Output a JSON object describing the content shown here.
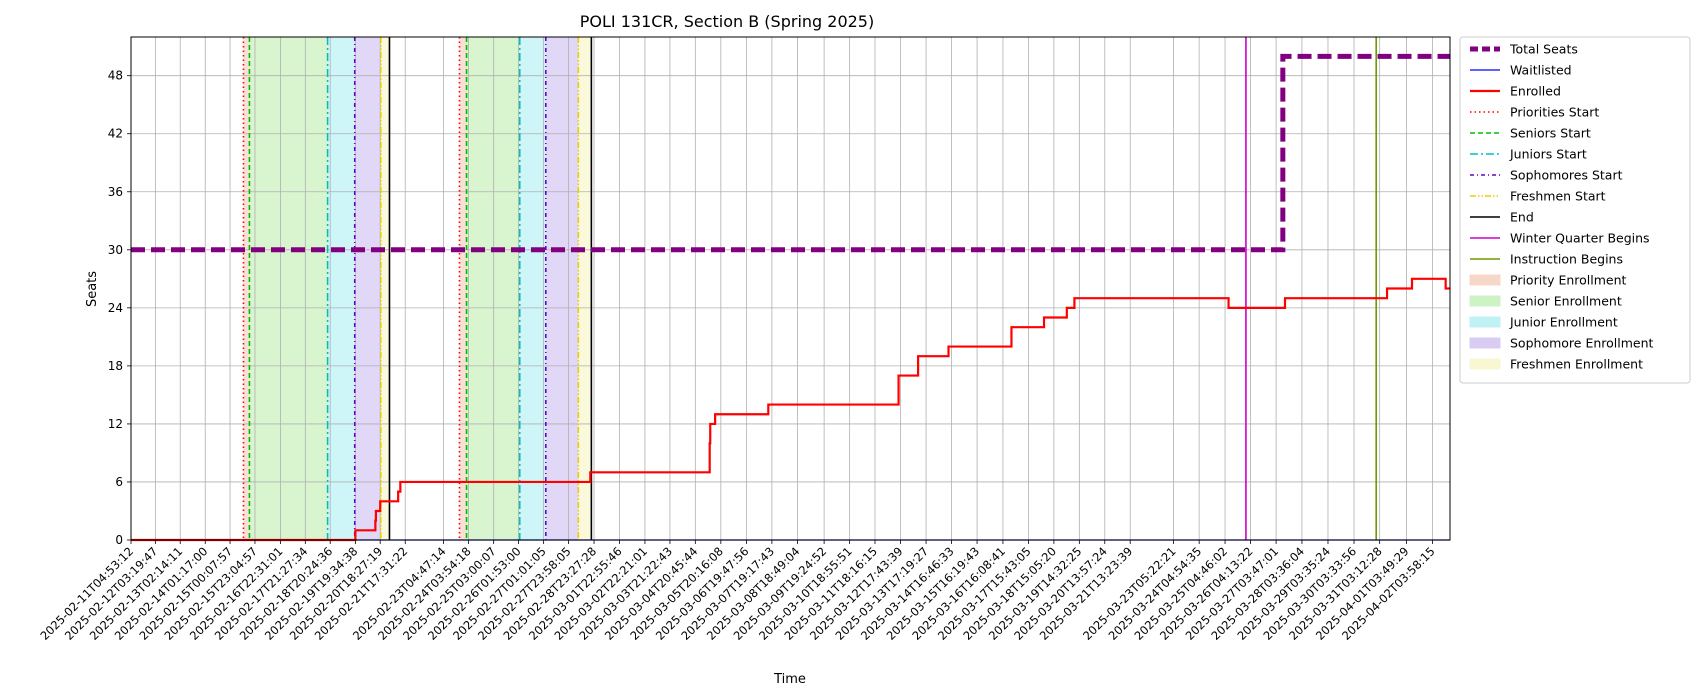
{
  "chart_data": {
    "type": "line",
    "title": "POLI 131CR, Section B (Spring 2025)",
    "xlabel": "Time",
    "ylabel": "Seats",
    "x_range": [
      "2025-02-11T04:53:12",
      "2025-04-02T20:00:00"
    ],
    "ylim": [
      0,
      52
    ],
    "y_ticks": [
      0,
      6,
      12,
      18,
      24,
      30,
      36,
      42,
      48
    ],
    "grid": true,
    "legend_position": "outside-right",
    "x_ticks": [
      "2025-02-11T04:53:12",
      "2025-02-12T03:19:47",
      "2025-02-13T02:14:11",
      "2025-02-14T01:17:00",
      "2025-02-15T00:07:57",
      "2025-02-15T23:04:57",
      "2025-02-16T22:31:01",
      "2025-02-17T21:27:34",
      "2025-02-18T20:24:36",
      "2025-02-19T19:34:38",
      "2025-02-20T18:27:19",
      "2025-02-21T17:31:22",
      "2025-02-23T04:47:14",
      "2025-02-24T03:54:18",
      "2025-02-25T03:00:07",
      "2025-02-26T01:53:00",
      "2025-02-27T01:01:05",
      "2025-02-27T23:58:05",
      "2025-02-28T23:27:28",
      "2025-03-01T22:55:46",
      "2025-03-02T22:21:01",
      "2025-03-03T21:22:43",
      "2025-03-04T20:45:44",
      "2025-03-05T20:16:08",
      "2025-03-06T19:47:56",
      "2025-03-07T19:17:43",
      "2025-03-08T18:49:04",
      "2025-03-09T19:24:52",
      "2025-03-10T18:55:51",
      "2025-03-11T18:16:15",
      "2025-03-12T17:43:39",
      "2025-03-13T17:19:27",
      "2025-03-14T16:46:33",
      "2025-03-15T16:19:43",
      "2025-03-16T16:08:41",
      "2025-03-17T15:43:05",
      "2025-03-18T15:05:20",
      "2025-03-19T14:32:25",
      "2025-03-20T13:57:24",
      "2025-03-21T13:23:39",
      "2025-03-23T05:22:21",
      "2025-03-24T04:54:35",
      "2025-03-25T04:46:02",
      "2025-03-26T04:13:22",
      "2025-03-27T03:47:01",
      "2025-03-28T03:36:04",
      "2025-03-29T03:35:24",
      "2025-03-30T03:33:56",
      "2025-03-31T03:12:28",
      "2025-04-01T03:49:29",
      "2025-04-02T03:58:15"
    ],
    "series": [
      {
        "name": "Total Seats",
        "color": "#800080",
        "style": "dashed-thick",
        "points": [
          [
            "2025-02-11T04:53:12",
            30
          ],
          [
            "2025-03-27T10:00:00",
            30
          ],
          [
            "2025-03-27T10:00:00",
            50
          ],
          [
            "2025-04-02T20:00:00",
            50
          ]
        ]
      },
      {
        "name": "Waitlisted",
        "color": "#0000ff",
        "style": "solid-thin",
        "points": [
          [
            "2025-02-11T04:53:12",
            0
          ],
          [
            "2025-04-02T20:00:00",
            0
          ]
        ]
      },
      {
        "name": "Enrolled",
        "color": "#ff0000",
        "style": "solid-thick",
        "points": [
          [
            "2025-02-11T04:53:12",
            0
          ],
          [
            "2025-02-19T19:34:38",
            0
          ],
          [
            "2025-02-19T19:34:38",
            1
          ],
          [
            "2025-02-20T14:00:00",
            1
          ],
          [
            "2025-02-20T14:00:00",
            2
          ],
          [
            "2025-02-20T14:30:00",
            2
          ],
          [
            "2025-02-20T14:30:00",
            3
          ],
          [
            "2025-02-20T18:27:19",
            3
          ],
          [
            "2025-02-20T18:27:19",
            4
          ],
          [
            "2025-02-21T11:00:00",
            4
          ],
          [
            "2025-02-21T11:00:00",
            5
          ],
          [
            "2025-02-21T13:00:00",
            5
          ],
          [
            "2025-02-21T13:00:00",
            6
          ],
          [
            "2025-02-28T20:00:00",
            6
          ],
          [
            "2025-02-28T20:00:00",
            7
          ],
          [
            "2025-03-05T10:00:00",
            7
          ],
          [
            "2025-03-05T10:00:00",
            10
          ],
          [
            "2025-03-05T10:30:00",
            10
          ],
          [
            "2025-03-05T10:30:00",
            12
          ],
          [
            "2025-03-05T15:00:00",
            12
          ],
          [
            "2025-03-05T15:00:00",
            13
          ],
          [
            "2025-03-07T16:00:00",
            13
          ],
          [
            "2025-03-07T16:00:00",
            14
          ],
          [
            "2025-03-12T16:00:00",
            14
          ],
          [
            "2025-03-12T16:00:00",
            17
          ],
          [
            "2025-03-13T10:00:00",
            17
          ],
          [
            "2025-03-13T10:00:00",
            19
          ],
          [
            "2025-03-14T14:00:00",
            19
          ],
          [
            "2025-03-14T14:00:00",
            20
          ],
          [
            "2025-03-17T00:00:00",
            20
          ],
          [
            "2025-03-17T00:00:00",
            22
          ],
          [
            "2025-03-18T06:00:00",
            22
          ],
          [
            "2025-03-18T06:00:00",
            23
          ],
          [
            "2025-03-19T03:00:00",
            23
          ],
          [
            "2025-03-19T03:00:00",
            24
          ],
          [
            "2025-03-19T10:00:00",
            24
          ],
          [
            "2025-03-19T10:00:00",
            25
          ],
          [
            "2025-03-25T08:00:00",
            25
          ],
          [
            "2025-03-25T08:00:00",
            24
          ],
          [
            "2025-03-27T12:00:00",
            24
          ],
          [
            "2025-03-27T12:00:00",
            25
          ],
          [
            "2025-03-31T10:00:00",
            25
          ],
          [
            "2025-03-31T10:00:00",
            26
          ],
          [
            "2025-04-01T09:00:00",
            26
          ],
          [
            "2025-04-01T09:00:00",
            27
          ],
          [
            "2025-04-02T16:00:00",
            27
          ],
          [
            "2025-04-02T16:00:00",
            26
          ],
          [
            "2025-04-02T20:00:00",
            26
          ]
        ]
      }
    ],
    "vlines": [
      {
        "name": "Priorities Start",
        "color": "#ff0000",
        "style": "dotted",
        "x": [
          "2025-02-15T12:30:00",
          "2025-02-23T19:30:00"
        ]
      },
      {
        "name": "Seniors Start",
        "color": "#00bb00",
        "style": "dashed",
        "x": [
          "2025-02-15T18:00:00",
          "2025-02-24T02:00:00"
        ]
      },
      {
        "name": "Juniors Start",
        "color": "#00bfbf",
        "style": "dashdot",
        "x": [
          "2025-02-18T18:00:00",
          "2025-02-26T03:00:00"
        ]
      },
      {
        "name": "Sophomores Start",
        "color": "#6600cc",
        "style": "dashdot-dense",
        "x": [
          "2025-02-19T19:00:00",
          "2025-02-27T03:00:00"
        ]
      },
      {
        "name": "Freshmen Start",
        "color": "#e6d000",
        "style": "dashdotdot",
        "x": [
          "2025-02-20T19:00:00",
          "2025-02-28T09:00:00"
        ]
      },
      {
        "name": "End",
        "color": "#000000",
        "style": "solid",
        "x": [
          "2025-02-21T03:00:00",
          "2025-02-28T21:00:00"
        ]
      },
      {
        "name": "Winter Quarter Begins",
        "color": "#cc00cc",
        "style": "solid",
        "x": [
          "2025-03-26T00:00:00"
        ]
      },
      {
        "name": "Instruction Begins",
        "color": "#6b9b00",
        "style": "solid",
        "x": [
          "2025-03-31T00:00:00"
        ]
      }
    ],
    "spans": [
      {
        "name": "Priority Enrollment",
        "color": "#f4c7b0",
        "x": [
          [
            "2025-02-15T12:30:00",
            "2025-02-15T18:00:00"
          ],
          [
            "2025-02-23T19:30:00",
            "2025-02-24T02:00:00"
          ]
        ]
      },
      {
        "name": "Senior Enrollment",
        "color": "#b8edaa",
        "x": [
          [
            "2025-02-15T18:00:00",
            "2025-02-18T18:00:00"
          ],
          [
            "2025-02-24T02:00:00",
            "2025-02-26T03:00:00"
          ]
        ]
      },
      {
        "name": "Junior Enrollment",
        "color": "#a6ecf0",
        "x": [
          [
            "2025-02-18T18:00:00",
            "2025-02-19T19:00:00"
          ],
          [
            "2025-02-26T03:00:00",
            "2025-02-27T03:00:00"
          ]
        ]
      },
      {
        "name": "Sophomore Enrollment",
        "color": "#c9b7ee",
        "x": [
          [
            "2025-02-19T19:00:00",
            "2025-02-20T19:00:00"
          ],
          [
            "2025-02-27T03:00:00",
            "2025-02-28T09:00:00"
          ]
        ]
      },
      {
        "name": "Freshmen Enrollment",
        "color": "#f7f4bf",
        "x": [
          [
            "2025-02-20T19:00:00",
            "2025-02-21T03:00:00"
          ],
          [
            "2025-02-28T09:00:00",
            "2025-02-28T21:00:00"
          ]
        ]
      }
    ],
    "legend": [
      {
        "label": "Total Seats",
        "kind": "line",
        "color": "#800080",
        "style": "dashed-thick"
      },
      {
        "label": "Waitlisted",
        "kind": "line",
        "color": "#0000ff",
        "style": "solid-thin"
      },
      {
        "label": "Enrolled",
        "kind": "line",
        "color": "#ff0000",
        "style": "solid-thick"
      },
      {
        "label": "Priorities Start",
        "kind": "line",
        "color": "#ff0000",
        "style": "dotted"
      },
      {
        "label": "Seniors Start",
        "kind": "line",
        "color": "#00bb00",
        "style": "dashed"
      },
      {
        "label": "Juniors Start",
        "kind": "line",
        "color": "#00bfbf",
        "style": "dashdot"
      },
      {
        "label": "Sophomores Start",
        "kind": "line",
        "color": "#6600cc",
        "style": "dashdot-dense"
      },
      {
        "label": "Freshmen Start",
        "kind": "line",
        "color": "#e6d000",
        "style": "dashdotdot"
      },
      {
        "label": "End",
        "kind": "line",
        "color": "#000000",
        "style": "solid"
      },
      {
        "label": "Winter Quarter Begins",
        "kind": "line",
        "color": "#cc00cc",
        "style": "solid"
      },
      {
        "label": "Instruction Begins",
        "kind": "line",
        "color": "#6b9b00",
        "style": "solid"
      },
      {
        "label": "Priority Enrollment",
        "kind": "patch",
        "color": "#f4c7b0"
      },
      {
        "label": "Senior Enrollment",
        "kind": "patch",
        "color": "#b8edaa"
      },
      {
        "label": "Junior Enrollment",
        "kind": "patch",
        "color": "#a6ecf0"
      },
      {
        "label": "Sophomore Enrollment",
        "kind": "patch",
        "color": "#c9b7ee"
      },
      {
        "label": "Freshmen Enrollment",
        "kind": "patch",
        "color": "#f7f4bf"
      }
    ]
  }
}
